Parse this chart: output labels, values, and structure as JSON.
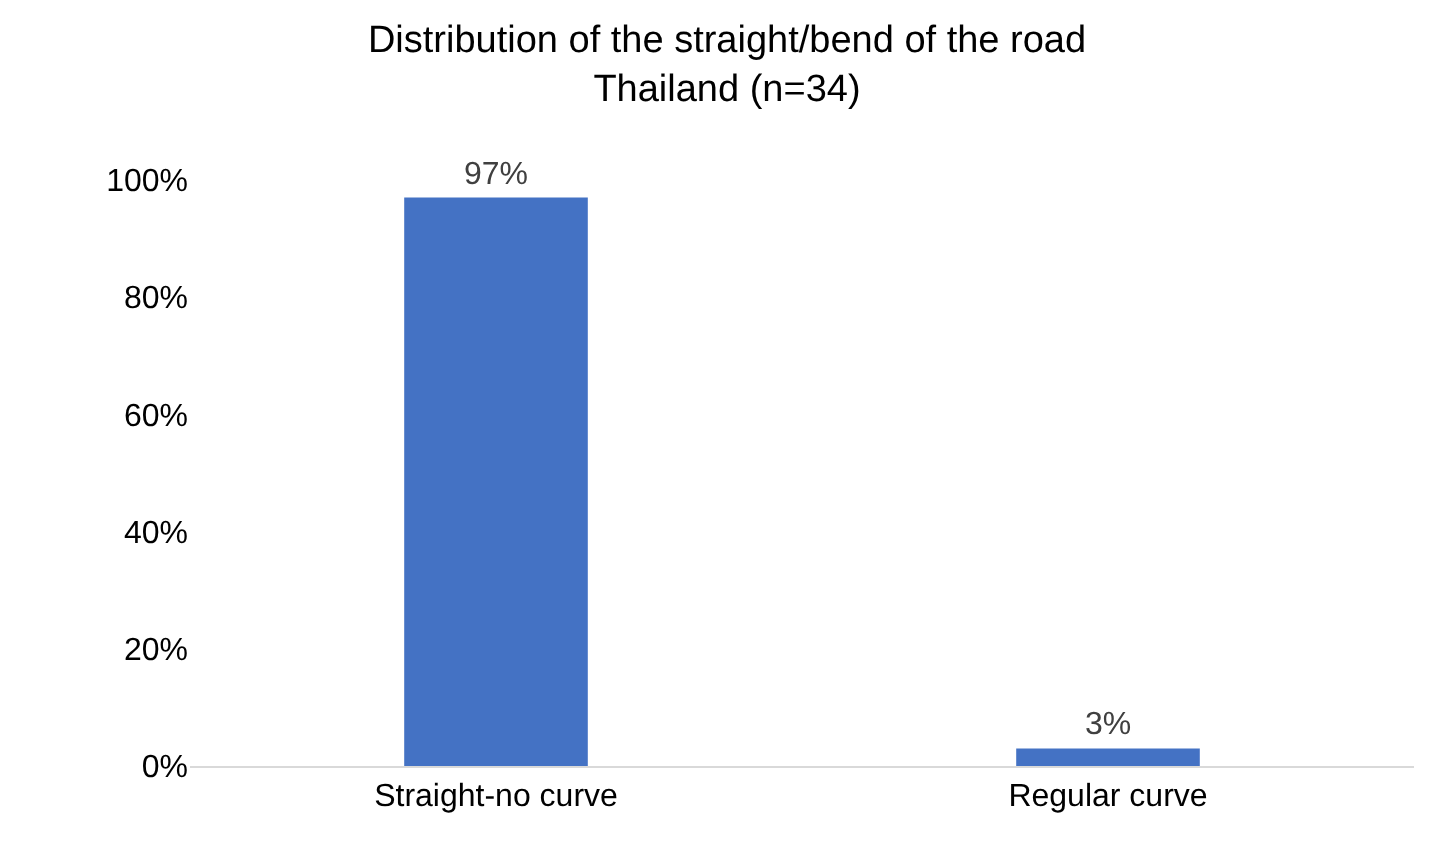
{
  "chart_data": {
    "type": "bar",
    "title": "Distribution of the straight/bend of the road",
    "subtitle": "Thailand (n=34)",
    "categories": [
      "Straight-no curve",
      "Regular curve"
    ],
    "values": [
      97,
      3
    ],
    "color": "#4472c4",
    "value_labels": [
      "97%",
      "3%"
    ],
    "ylim": [
      0,
      100
    ],
    "yticks": [
      {
        "value": 0,
        "label": "0%"
      },
      {
        "value": 20,
        "label": "20%"
      },
      {
        "value": 40,
        "label": "40%"
      },
      {
        "value": 60,
        "label": "60%"
      },
      {
        "value": 80,
        "label": "80%"
      },
      {
        "value": 100,
        "label": "100%"
      }
    ],
    "grid": false
  }
}
